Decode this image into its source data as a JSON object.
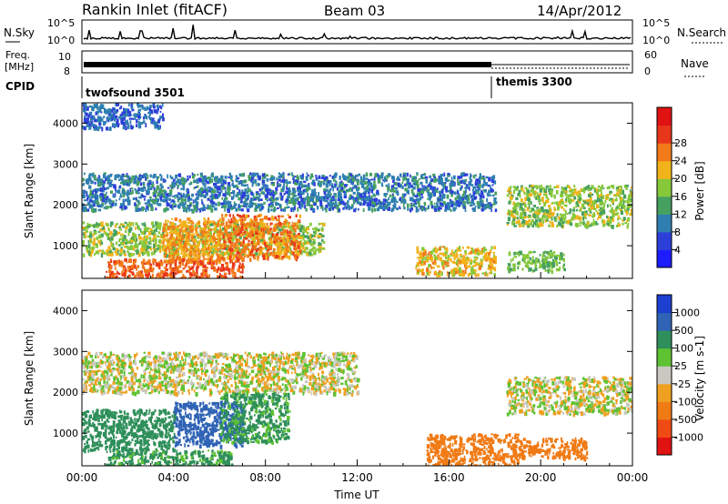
{
  "header": {
    "station": "Rankin Inlet (fitACF)",
    "beam": "Beam 03",
    "date": "14/Apr/2012"
  },
  "top_panels": {
    "nsky": {
      "label": "N.Sky",
      "ticks": [
        "10^5",
        "10^0"
      ],
      "right_label": "N.Search",
      "right_ticks": [
        "10^5",
        "10^0"
      ]
    },
    "freq": {
      "label_line1": "Freq.",
      "label_line2": "[MHz]",
      "ticks": [
        "10",
        "8"
      ],
      "right_label": "Nave",
      "right_ticks": [
        "60",
        "0"
      ]
    },
    "cpid": {
      "label": "CPID",
      "modes": [
        {
          "name": "twofsound 3501",
          "start_hour": 0
        },
        {
          "name": "themis 3300",
          "start_hour": 18
        }
      ]
    }
  },
  "chart_data": [
    {
      "type": "heatmap",
      "name": "power-panel",
      "ylabel": "Slant Range [km]",
      "xlabel": "",
      "xlim": [
        0,
        24
      ],
      "ylim": [
        200,
        4500
      ],
      "yticks": [
        "1000",
        "2000",
        "3000",
        "4000"
      ],
      "colorbar": {
        "label": "Power [dB]",
        "ticks": [
          "4",
          "8",
          "12",
          "16",
          "20",
          "24",
          "28"
        ],
        "colors": [
          "#1d1dff",
          "#2d3fd9",
          "#2e7fb0",
          "#46a060",
          "#86c83a",
          "#f2b21a",
          "#f27a1a",
          "#e8361a",
          "#e01212"
        ]
      },
      "regions": [
        {
          "t0": 0.0,
          "t1": 18.0,
          "r0": 1900,
          "r1": 2800,
          "value": 10
        },
        {
          "t0": 0.0,
          "t1": 10.5,
          "r0": 800,
          "r1": 1600,
          "value": 18
        },
        {
          "t0": 3.5,
          "t1": 6.0,
          "r0": 600,
          "r1": 1700,
          "value": 24
        },
        {
          "t0": 6.0,
          "t1": 9.5,
          "r0": 700,
          "r1": 1800,
          "value": 26
        },
        {
          "t0": 1.0,
          "t1": 7.0,
          "r0": 200,
          "r1": 700,
          "value": 28
        },
        {
          "t0": 14.5,
          "t1": 18.0,
          "r0": 300,
          "r1": 1000,
          "value": 22
        },
        {
          "t0": 18.5,
          "t1": 21.0,
          "r0": 400,
          "r1": 900,
          "value": 16
        },
        {
          "t0": 18.5,
          "t1": 24.0,
          "r0": 1500,
          "r1": 2500,
          "value": 18
        },
        {
          "t0": 0.0,
          "t1": 3.5,
          "r0": 3900,
          "r1": 4500,
          "value": 8
        }
      ]
    },
    {
      "type": "heatmap",
      "name": "velocity-panel",
      "ylabel": "Slant Range [km]",
      "xlabel": "Time UT",
      "xlim": [
        0,
        24
      ],
      "ylim": [
        200,
        4500
      ],
      "xticks": [
        "00:00",
        "04:00",
        "08:00",
        "12:00",
        "16:00",
        "20:00",
        "00:00"
      ],
      "yticks": [
        "1000",
        "2000",
        "3000",
        "4000"
      ],
      "colorbar": {
        "label": "Velocity [m s-1]",
        "ticks": [
          "1000",
          "500",
          "100",
          "25",
          "-25",
          "-100",
          "-500",
          "-1000"
        ],
        "colors": [
          "#1d3fcf",
          "#2f63b5",
          "#2e8f5a",
          "#5ec232",
          "#c8c8c0",
          "#f0a020",
          "#f07a14",
          "#f04a14",
          "#e01212"
        ]
      },
      "regions": [
        {
          "t0": 0.0,
          "t1": 12.0,
          "r0": 2000,
          "r1": 3000,
          "value": 0
        },
        {
          "t0": 18.5,
          "t1": 24.0,
          "r0": 1500,
          "r1": 2400,
          "value": 0
        },
        {
          "t0": 0.0,
          "t1": 4.0,
          "r0": 600,
          "r1": 1600,
          "value": 400
        },
        {
          "t0": 4.0,
          "t1": 7.0,
          "r0": 700,
          "r1": 1800,
          "value": 700
        },
        {
          "t0": 6.0,
          "t1": 9.0,
          "r0": 800,
          "r1": 2000,
          "value": 150
        },
        {
          "t0": 1.0,
          "t1": 6.5,
          "r0": 200,
          "r1": 600,
          "value": 150
        },
        {
          "t0": 15.0,
          "t1": 19.0,
          "r0": 200,
          "r1": 1000,
          "value": -300
        },
        {
          "t0": 19.0,
          "t1": 22.0,
          "r0": 400,
          "r1": 900,
          "value": -300
        }
      ]
    }
  ]
}
